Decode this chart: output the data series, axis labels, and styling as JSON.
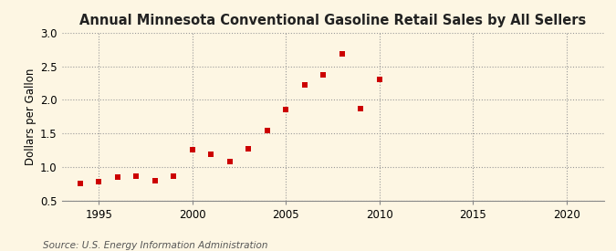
{
  "title": "Annual Minnesota Conventional Gasoline Retail Sales by All Sellers",
  "ylabel": "Dollars per Gallon",
  "source": "Source: U.S. Energy Information Administration",
  "years": [
    1994,
    1995,
    1996,
    1997,
    1998,
    1999,
    2000,
    2001,
    2002,
    2003,
    2004,
    2005,
    2006,
    2007,
    2008,
    2009,
    2010
  ],
  "values": [
    0.76,
    0.78,
    0.85,
    0.87,
    0.8,
    0.87,
    1.26,
    1.19,
    1.09,
    1.27,
    1.54,
    1.86,
    2.22,
    2.37,
    2.69,
    1.87,
    2.3
  ],
  "marker_color": "#cc0000",
  "background_color": "#fdf6e3",
  "grid_color": "#999999",
  "xlim": [
    1993,
    2022
  ],
  "ylim": [
    0.5,
    3.0
  ],
  "xticks": [
    1995,
    2000,
    2005,
    2010,
    2015,
    2020
  ],
  "yticks": [
    0.5,
    1.0,
    1.5,
    2.0,
    2.5,
    3.0
  ],
  "title_fontsize": 10.5,
  "label_fontsize": 8.5,
  "tick_fontsize": 8.5,
  "source_fontsize": 7.5
}
